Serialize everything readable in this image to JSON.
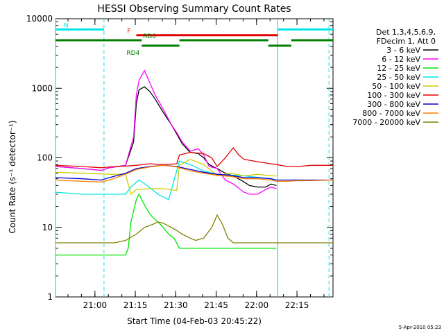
{
  "chart_data": {
    "type": "line",
    "title": "HESSI Observing Summary Count Rates",
    "xlabel": "Start Time (04-Feb-03 20:45:22)",
    "ylabel": "Count Rate (s⁻¹ detector⁻¹)",
    "yscale": "log",
    "ylim": [
      1,
      10000
    ],
    "xlim_minutes_after_start": [
      0,
      103
    ],
    "x_tick_labels": [
      "21:00",
      "21:15",
      "21:30",
      "21:45",
      "22:00",
      "22:15"
    ],
    "x_tick_minutes_after_start": [
      14.63,
      29.63,
      44.63,
      59.63,
      74.63,
      89.63
    ],
    "y_tick_labels": [
      "1",
      "10",
      "100",
      "1000",
      "10000"
    ],
    "y_tick_values": [
      1,
      10,
      100,
      1000,
      10000
    ],
    "legend_header": [
      "Det 1,3,4,5,6,9,",
      "FDecim 1, Att 0"
    ],
    "legend_position": "right",
    "footer_timestamp": "5-Apr-2010 05:23",
    "flags": [
      {
        "label": "N",
        "color": "#00e5e5",
        "level": 7000,
        "segments": [
          [
            0,
            18
          ],
          [
            82.5,
            103
          ]
        ]
      },
      {
        "label": "F",
        "color": "#e00000",
        "level": 5800,
        "segments": [
          [
            30,
            82.5
          ]
        ]
      },
      {
        "label": "RD0",
        "color": "#007f00",
        "level": 4900,
        "segments": [
          [
            0,
            32
          ],
          [
            46,
            79
          ],
          [
            87.5,
            103
          ]
        ]
      },
      {
        "label": "RD4",
        "color": "#007f00",
        "level": 4100,
        "segments": [
          [
            32,
            46
          ],
          [
            79,
            87.5
          ]
        ]
      }
    ],
    "vertical_markers": {
      "color": "#00e5e5",
      "solid_minutes": [
        0,
        82.5
      ],
      "dashed_minutes": [
        18,
        101.5
      ]
    },
    "series": [
      {
        "name": "3 - 6 keV",
        "color": "#000000",
        "points": [
          [
            0,
            75
          ],
          [
            10,
            70
          ],
          [
            17,
            66
          ],
          [
            19,
            70
          ],
          [
            20,
            72
          ],
          [
            26,
            78
          ],
          [
            29,
            170
          ],
          [
            30,
            600
          ],
          [
            31,
            950
          ],
          [
            33,
            1050
          ],
          [
            35,
            900
          ],
          [
            37,
            700
          ],
          [
            40,
            450
          ],
          [
            43,
            300
          ],
          [
            45,
            220
          ],
          [
            47,
            160
          ],
          [
            50,
            120
          ],
          [
            53,
            115
          ],
          [
            55,
            100
          ],
          [
            57,
            80
          ],
          [
            60,
            70
          ],
          [
            63,
            60
          ],
          [
            66,
            55
          ],
          [
            70,
            45
          ],
          [
            72,
            40
          ],
          [
            75,
            38
          ],
          [
            78,
            38
          ],
          [
            80,
            42
          ],
          [
            82,
            40
          ]
        ]
      },
      {
        "name": "6 - 12 keV",
        "color": "#ff00ff",
        "points": [
          [
            0,
            75
          ],
          [
            10,
            70
          ],
          [
            17,
            66
          ],
          [
            19,
            70
          ],
          [
            20,
            72
          ],
          [
            26,
            78
          ],
          [
            29,
            200
          ],
          [
            30,
            800
          ],
          [
            31,
            1300
          ],
          [
            33,
            1800
          ],
          [
            35,
            1200
          ],
          [
            37,
            800
          ],
          [
            40,
            500
          ],
          [
            43,
            300
          ],
          [
            45,
            230
          ],
          [
            47,
            170
          ],
          [
            50,
            125
          ],
          [
            53,
            135
          ],
          [
            55,
            110
          ],
          [
            57,
            75
          ],
          [
            60,
            70
          ],
          [
            63,
            48
          ],
          [
            66,
            42
          ],
          [
            70,
            32
          ],
          [
            72,
            30
          ],
          [
            75,
            30
          ],
          [
            78,
            35
          ],
          [
            80,
            38
          ],
          [
            82,
            36
          ]
        ]
      },
      {
        "name": "12 - 25 keV",
        "color": "#00e500",
        "points": [
          [
            0,
            4
          ],
          [
            26,
            4
          ],
          [
            27,
            5
          ],
          [
            28,
            12
          ],
          [
            30,
            25
          ],
          [
            31,
            30
          ],
          [
            32,
            25
          ],
          [
            34,
            18
          ],
          [
            36,
            14
          ],
          [
            38,
            12
          ],
          [
            40,
            10
          ],
          [
            42,
            8
          ],
          [
            44,
            7
          ],
          [
            46,
            5
          ],
          [
            50,
            5
          ],
          [
            60,
            5
          ],
          [
            70,
            5
          ],
          [
            82,
            5
          ]
        ]
      },
      {
        "name": "25 - 50 keV",
        "color": "#00e5e5",
        "points": [
          [
            0,
            32
          ],
          [
            10,
            30
          ],
          [
            20,
            30
          ],
          [
            26,
            30
          ],
          [
            28,
            38
          ],
          [
            31,
            48
          ],
          [
            34,
            40
          ],
          [
            38,
            30
          ],
          [
            42,
            25
          ],
          [
            46,
            90
          ],
          [
            50,
            80
          ],
          [
            55,
            65
          ],
          [
            60,
            58
          ],
          [
            70,
            55
          ],
          [
            80,
            50
          ],
          [
            82,
            48
          ]
        ]
      },
      {
        "name": "50 - 100 keV",
        "color": "#cccc00",
        "points": [
          [
            0,
            62
          ],
          [
            10,
            60
          ],
          [
            20,
            58
          ],
          [
            26,
            58
          ],
          [
            28,
            30
          ],
          [
            30,
            35
          ],
          [
            35,
            36
          ],
          [
            40,
            36
          ],
          [
            45,
            34
          ],
          [
            46,
            78
          ],
          [
            50,
            95
          ],
          [
            55,
            80
          ],
          [
            58,
            65
          ],
          [
            60,
            55
          ],
          [
            65,
            60
          ],
          [
            70,
            55
          ],
          [
            75,
            58
          ],
          [
            80,
            55
          ],
          [
            82,
            55
          ]
        ]
      },
      {
        "name": "100 - 300 keV",
        "color": "#e00000",
        "points": [
          [
            0,
            78
          ],
          [
            10,
            75
          ],
          [
            17,
            72
          ],
          [
            20,
            74
          ],
          [
            26,
            76
          ],
          [
            30,
            78
          ],
          [
            35,
            82
          ],
          [
            40,
            80
          ],
          [
            45,
            82
          ],
          [
            46,
            110
          ],
          [
            50,
            120
          ],
          [
            55,
            115
          ],
          [
            58,
            100
          ],
          [
            60,
            75
          ],
          [
            63,
            100
          ],
          [
            66,
            140
          ],
          [
            68,
            110
          ],
          [
            70,
            95
          ],
          [
            75,
            88
          ],
          [
            80,
            82
          ],
          [
            82,
            80
          ],
          [
            86,
            75
          ],
          [
            90,
            75
          ],
          [
            95,
            78
          ],
          [
            103,
            78
          ]
        ]
      },
      {
        "name": "300 - 800 keV",
        "color": "#0000cc",
        "points": [
          [
            0,
            52
          ],
          [
            10,
            50
          ],
          [
            17,
            48
          ],
          [
            20,
            52
          ],
          [
            26,
            60
          ],
          [
            30,
            70
          ],
          [
            35,
            75
          ],
          [
            40,
            78
          ],
          [
            45,
            75
          ],
          [
            50,
            68
          ],
          [
            55,
            62
          ],
          [
            60,
            58
          ],
          [
            65,
            56
          ],
          [
            70,
            52
          ],
          [
            75,
            52
          ],
          [
            80,
            50
          ],
          [
            82,
            48
          ],
          [
            86,
            48
          ],
          [
            90,
            48
          ],
          [
            95,
            48
          ],
          [
            103,
            48
          ]
        ]
      },
      {
        "name": "800 - 7000 keV",
        "color": "#ff8000",
        "points": [
          [
            0,
            48
          ],
          [
            10,
            46
          ],
          [
            17,
            45
          ],
          [
            20,
            48
          ],
          [
            26,
            58
          ],
          [
            30,
            68
          ],
          [
            35,
            74
          ],
          [
            40,
            78
          ],
          [
            45,
            74
          ],
          [
            50,
            65
          ],
          [
            55,
            60
          ],
          [
            60,
            56
          ],
          [
            65,
            54
          ],
          [
            70,
            50
          ],
          [
            75,
            50
          ],
          [
            80,
            48
          ],
          [
            82,
            46
          ],
          [
            86,
            46
          ],
          [
            90,
            47
          ],
          [
            95,
            47
          ],
          [
            103,
            48
          ]
        ]
      },
      {
        "name": "7000 - 20000 keV",
        "color": "#7f7f00",
        "points": [
          [
            0,
            6
          ],
          [
            10,
            6
          ],
          [
            18,
            6
          ],
          [
            22,
            6
          ],
          [
            26,
            6.5
          ],
          [
            30,
            8
          ],
          [
            33,
            10
          ],
          [
            36,
            11
          ],
          [
            38,
            12
          ],
          [
            40,
            11.5
          ],
          [
            43,
            10
          ],
          [
            45,
            9
          ],
          [
            47,
            8
          ],
          [
            50,
            7
          ],
          [
            52,
            6.5
          ],
          [
            55,
            7
          ],
          [
            58,
            10
          ],
          [
            60,
            15
          ],
          [
            62,
            11
          ],
          [
            64,
            7
          ],
          [
            66,
            6
          ],
          [
            70,
            6
          ],
          [
            75,
            6
          ],
          [
            80,
            6
          ],
          [
            82,
            6
          ],
          [
            86,
            6
          ],
          [
            90,
            6
          ],
          [
            95,
            6
          ],
          [
            103,
            6
          ]
        ]
      }
    ]
  }
}
